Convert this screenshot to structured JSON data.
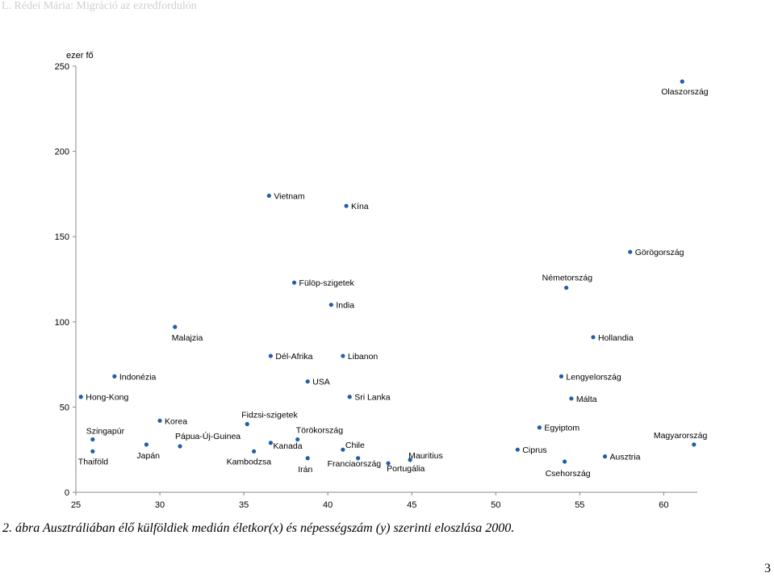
{
  "header": {
    "running_title": "L. Rédei Mária: Migráció az ezredfordulón"
  },
  "caption": "2. ábra Ausztráliában élő külföldiek medián életkor(x) és népességszám (y) szerinti eloszlása 2000.",
  "page_number": "3",
  "colors": {
    "point": "#1f5fa8",
    "axis": "#888888",
    "text": "#000000"
  },
  "chart_data": {
    "type": "scatter",
    "ylabel": "ezer fő",
    "xlim": [
      25,
      62
    ],
    "ylim": [
      0,
      250
    ],
    "x_ticks": [
      25,
      30,
      35,
      40,
      45,
      50,
      55,
      60
    ],
    "y_ticks": [
      0,
      50,
      100,
      150,
      200,
      250
    ],
    "grid": false,
    "points": [
      {
        "label": "Olaszország",
        "x": 61.1,
        "y": 241
      },
      {
        "label": "Vietnam",
        "x": 36.5,
        "y": 174
      },
      {
        "label": "Kína",
        "x": 41.1,
        "y": 168
      },
      {
        "label": "Görögország",
        "x": 58.0,
        "y": 141
      },
      {
        "label": "Fülöp-szigetek",
        "x": 38.0,
        "y": 123
      },
      {
        "label": "Németország",
        "x": 54.2,
        "y": 120
      },
      {
        "label": "India",
        "x": 40.2,
        "y": 110
      },
      {
        "label": "Malajzia",
        "x": 30.9,
        "y": 97
      },
      {
        "label": "Hollandia",
        "x": 55.8,
        "y": 91
      },
      {
        "label": "Dél-Afrika",
        "x": 36.6,
        "y": 80
      },
      {
        "label": "Libanon",
        "x": 40.9,
        "y": 80
      },
      {
        "label": "Indonézia",
        "x": 27.3,
        "y": 68
      },
      {
        "label": "USA",
        "x": 38.8,
        "y": 65
      },
      {
        "label": "Lengyelország",
        "x": 53.9,
        "y": 68
      },
      {
        "label": "Hong-Kong",
        "x": 25.3,
        "y": 56
      },
      {
        "label": "Sri Lanka",
        "x": 41.3,
        "y": 56
      },
      {
        "label": "Málta",
        "x": 54.5,
        "y": 55
      },
      {
        "label": "Fidzsi-szigetek",
        "x": 35.2,
        "y": 40
      },
      {
        "label": "Korea",
        "x": 30.0,
        "y": 42
      },
      {
        "label": "Egyiptom",
        "x": 52.6,
        "y": 38
      },
      {
        "label": "Törökország",
        "x": 38.2,
        "y": 31
      },
      {
        "label": "Szingapúr",
        "x": 26.0,
        "y": 31
      },
      {
        "label": "Pápua-Új-Guinea",
        "x": 31.2,
        "y": 27
      },
      {
        "label": "Japán",
        "x": 29.2,
        "y": 28
      },
      {
        "label": "Kanada",
        "x": 36.6,
        "y": 29
      },
      {
        "label": "Magyarország",
        "x": 61.8,
        "y": 28
      },
      {
        "label": "Chile",
        "x": 40.9,
        "y": 25
      },
      {
        "label": "Ciprus",
        "x": 51.3,
        "y": 25
      },
      {
        "label": "Thaiföld",
        "x": 26.0,
        "y": 24
      },
      {
        "label": "Kambodzsa",
        "x": 35.6,
        "y": 24
      },
      {
        "label": "Ausztria",
        "x": 56.5,
        "y": 21
      },
      {
        "label": "Mauritius",
        "x": 44.9,
        "y": 19
      },
      {
        "label": "Irán",
        "x": 38.8,
        "y": 20
      },
      {
        "label": "Franciaország",
        "x": 41.8,
        "y": 20
      },
      {
        "label": "Portugália",
        "x": 43.6,
        "y": 17
      },
      {
        "label": "Csehország",
        "x": 54.1,
        "y": 18
      }
    ]
  }
}
